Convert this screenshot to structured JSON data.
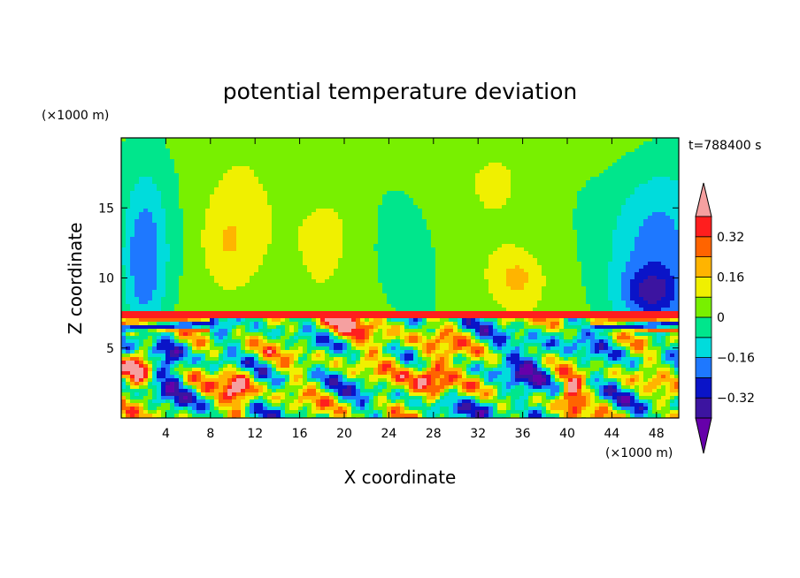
{
  "chart_data": {
    "type": "heatmap",
    "title": "potential temperature deviation",
    "time_label": "t=788400 s",
    "xlabel": "X coordinate",
    "ylabel": "Z coordinate",
    "x_unit": "(×1000 m)",
    "y_unit": "(×1000 m)",
    "xlim": [
      0,
      50
    ],
    "ylim": [
      0,
      20
    ],
    "x_ticks": [
      4,
      8,
      12,
      16,
      20,
      24,
      28,
      32,
      36,
      40,
      44,
      48
    ],
    "y_ticks": [
      5,
      10,
      15
    ],
    "colorbar": {
      "levels": [
        -0.4,
        -0.32,
        -0.24,
        -0.16,
        -0.08,
        0,
        0.08,
        0.16,
        0.24,
        0.32,
        0.4
      ],
      "labels": [
        "0.32",
        "0.16",
        "0",
        "−0.16",
        "−0.32"
      ],
      "label_values": [
        0.32,
        0.16,
        0,
        -0.16,
        -0.32
      ],
      "colors": [
        "#6600aa",
        "#3c14a0",
        "#0a14c8",
        "#1e78ff",
        "#00dcdc",
        "#00e68c",
        "#78f000",
        "#f0f000",
        "#ffb400",
        "#ff6400",
        "#ff1e1e",
        "#f5a0a0"
      ],
      "extend": "both"
    }
  }
}
